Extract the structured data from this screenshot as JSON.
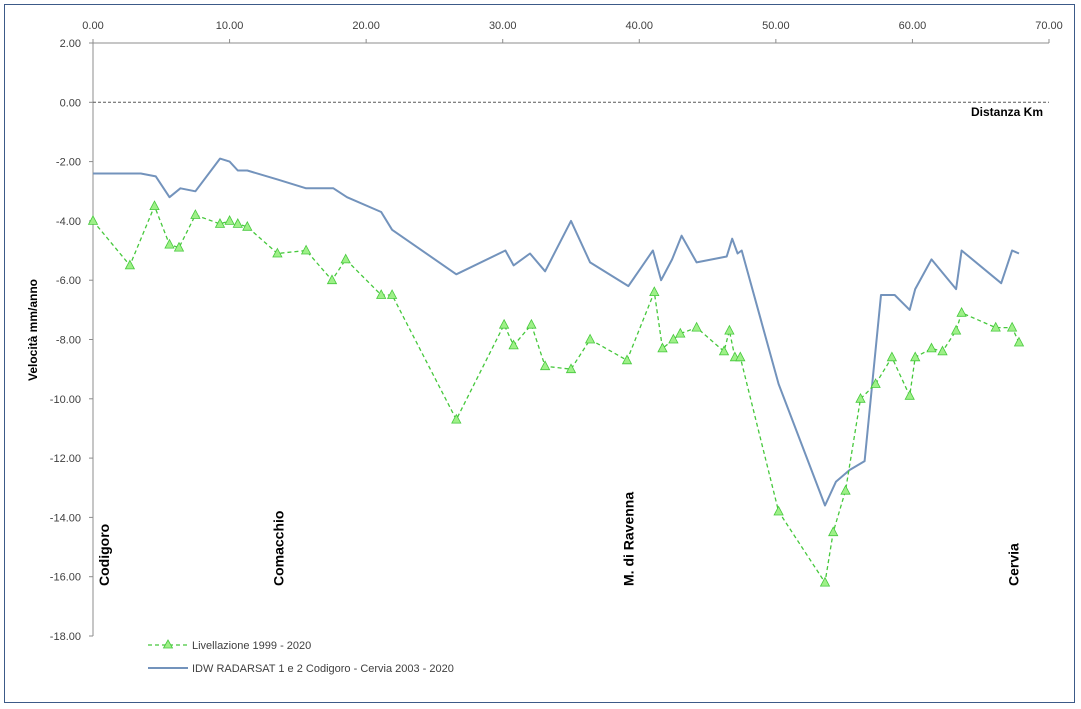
{
  "chart_data": {
    "type": "line",
    "xlabel": "Distanza Km",
    "ylabel": "Velocità mm/anno",
    "xlim": [
      0,
      70
    ],
    "ylim": [
      -18,
      2
    ],
    "x_ticks": [
      "0.00",
      "10.00",
      "20.00",
      "30.00",
      "40.00",
      "50.00",
      "60.00",
      "70.00"
    ],
    "y_ticks": [
      "2.00",
      "0.00",
      "-2.00",
      "-4.00",
      "-6.00",
      "-8.00",
      "-10.00",
      "-12.00",
      "-14.00",
      "-16.00",
      "-18.00"
    ],
    "grid": false,
    "zero_line": "dashed",
    "legend_position": "bottom-left",
    "places": [
      {
        "name": "Codigoro",
        "x": 0.8
      },
      {
        "name": "Comacchio",
        "x": 13.6
      },
      {
        "name": "M. di Ravenna",
        "x": 39.2
      },
      {
        "name": "Cervia",
        "x": 67.4
      }
    ],
    "series": [
      {
        "name": "Livellazione 1999 - 2020",
        "color": "#46c83c",
        "marker_color": "#9ef088",
        "style": "dashed",
        "marker": "triangle",
        "x": [
          0.0,
          2.7,
          4.5,
          5.6,
          6.3,
          7.5,
          9.3,
          10.0,
          10.6,
          11.3,
          13.5,
          15.6,
          17.5,
          18.5,
          21.1,
          21.9,
          26.6,
          30.1,
          30.8,
          32.1,
          33.1,
          35.0,
          36.4,
          39.1,
          41.1,
          41.7,
          42.5,
          43.0,
          44.2,
          46.2,
          46.6,
          47.0,
          47.4,
          50.2,
          53.6,
          54.2,
          55.1,
          56.2,
          57.3,
          58.5,
          59.8,
          60.2,
          61.4,
          62.2,
          63.2,
          63.6,
          66.1,
          67.3,
          67.8
        ],
        "values": [
          -4.0,
          -5.5,
          -3.5,
          -4.8,
          -4.9,
          -3.8,
          -4.1,
          -4.0,
          -4.1,
          -4.2,
          -5.1,
          -5.0,
          -6.0,
          -5.3,
          -6.5,
          -6.5,
          -10.7,
          -7.5,
          -8.2,
          -7.5,
          -8.9,
          -9.0,
          -8.0,
          -8.7,
          -6.4,
          -8.3,
          -8.0,
          -7.8,
          -7.6,
          -8.4,
          -7.7,
          -8.6,
          -8.6,
          -13.8,
          -16.2,
          -14.5,
          -13.1,
          -10.0,
          -9.5,
          -8.6,
          -9.9,
          -8.6,
          -8.3,
          -8.4,
          -7.7,
          -7.1,
          -7.6,
          -7.6,
          -8.1
        ]
      },
      {
        "name": "IDW RADARSAT 1 e 2 Codigoro - Cervia 2003 - 2020",
        "color": "#7393bc",
        "style": "solid",
        "marker": "none",
        "x": [
          0.0,
          1.5,
          2.7,
          3.5,
          4.6,
          5.6,
          6.4,
          7.5,
          9.3,
          10.0,
          10.6,
          11.3,
          13.5,
          15.6,
          17.6,
          18.6,
          21.1,
          21.9,
          26.6,
          30.2,
          30.8,
          32.0,
          33.1,
          35.0,
          36.4,
          39.2,
          41.0,
          41.6,
          42.4,
          43.1,
          44.2,
          46.4,
          46.8,
          47.2,
          47.5,
          50.2,
          53.6,
          54.4,
          55.4,
          56.5,
          57.7,
          58.7,
          59.8,
          60.2,
          61.4,
          63.2,
          63.6,
          66.5,
          67.3,
          67.8
        ],
        "values": [
          -2.4,
          -2.4,
          -2.4,
          -2.4,
          -2.5,
          -3.2,
          -2.9,
          -3.0,
          -1.9,
          -2.0,
          -2.3,
          -2.3,
          -2.6,
          -2.9,
          -2.9,
          -3.2,
          -3.7,
          -4.3,
          -5.8,
          -5.0,
          -5.5,
          -5.1,
          -5.7,
          -4.0,
          -5.4,
          -6.2,
          -5.0,
          -6.0,
          -5.3,
          -4.5,
          -5.4,
          -5.2,
          -4.6,
          -5.1,
          -5.0,
          -9.5,
          -13.6,
          -12.8,
          -12.4,
          -12.1,
          -6.5,
          -6.5,
          -7.0,
          -6.3,
          -5.3,
          -6.3,
          -5.0,
          -6.1,
          -5.0,
          -5.1
        ]
      }
    ]
  }
}
